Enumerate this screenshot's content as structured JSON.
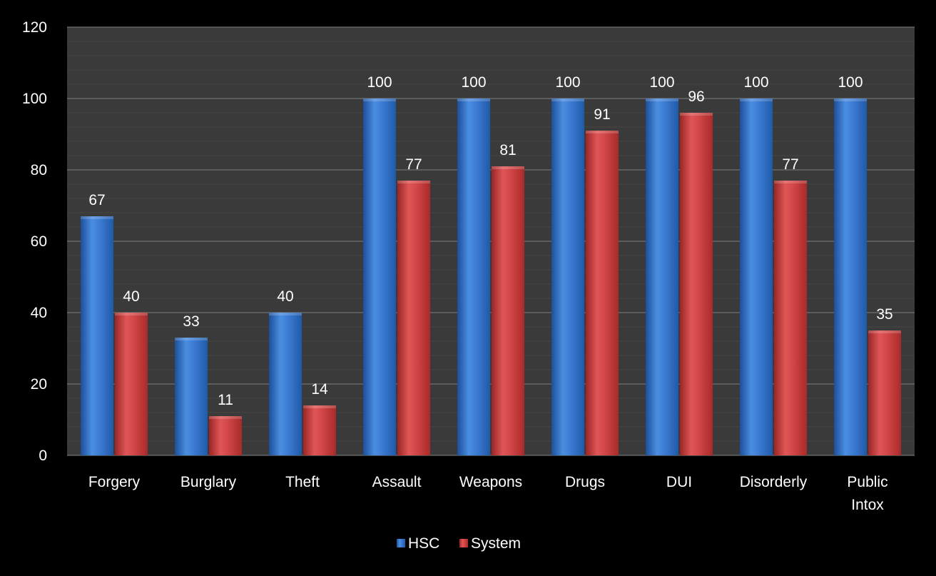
{
  "chart_data": {
    "type": "bar",
    "title": "",
    "xlabel": "",
    "ylabel": "",
    "categories": [
      [
        "Forgery"
      ],
      [
        "Burglary"
      ],
      [
        "Theft"
      ],
      [
        "Assault"
      ],
      [
        "Weapons"
      ],
      [
        "Drugs"
      ],
      [
        "DUI"
      ],
      [
        "Disorderly"
      ],
      [
        "Public",
        "Intox"
      ]
    ],
    "series": [
      {
        "name": "HSC",
        "color": "#2f6fc8",
        "values": [
          67,
          33,
          40,
          100,
          100,
          100,
          100,
          100,
          100
        ]
      },
      {
        "name": "System",
        "color": "#c83a3a",
        "values": [
          40,
          11,
          14,
          77,
          81,
          91,
          96,
          77,
          35
        ]
      }
    ],
    "ylim": [
      0,
      120
    ],
    "yticks": [
      0,
      20,
      40,
      60,
      80,
      100,
      120
    ],
    "grid": true,
    "legend_position": "bottom",
    "background": "#000000",
    "plot_background": "#3a3a3a",
    "gridline_color": "#666666"
  }
}
